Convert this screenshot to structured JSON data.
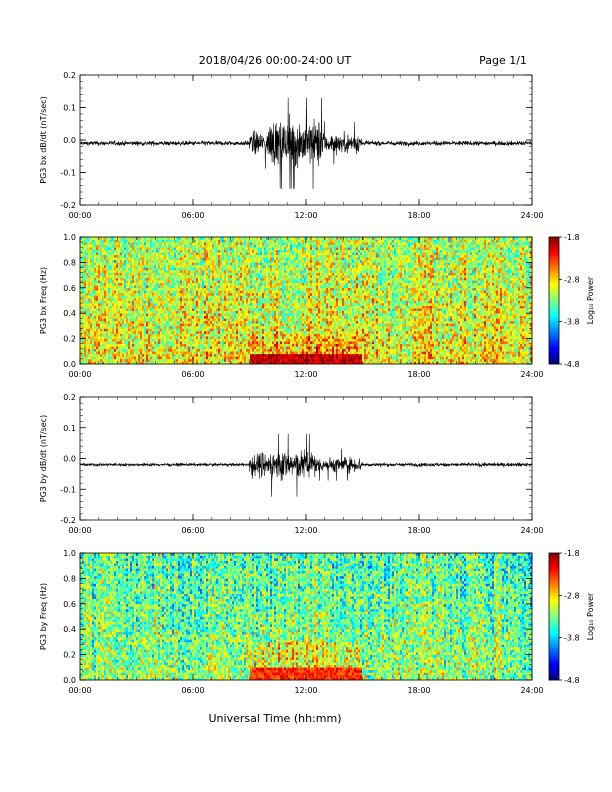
{
  "header": {
    "title": "2018/04/26  00:00-24:00 UT",
    "page": "Page 1/1"
  },
  "xlabel": "Universal Time (hh:mm)",
  "x_ticks": [
    "00:00",
    "06:00",
    "12:00",
    "18:00",
    "24:00"
  ],
  "colorbar": {
    "label": "Log₁₀ Power",
    "ticks": [
      "-1.8",
      "-2.8",
      "-3.8",
      "-4.8"
    ],
    "range": [
      -4.8,
      -1.8
    ]
  },
  "chart_data": [
    {
      "type": "line",
      "ylabel": "PG3 bx dB/dt (nT/sec)",
      "xlim": [
        0,
        24
      ],
      "ylim": [
        -0.2,
        0.2
      ],
      "y_ticks": [
        "0.2",
        "0.1",
        "0.0",
        "-0.1",
        "-0.2"
      ],
      "baseline": -0.01,
      "activity": [
        {
          "t": [
            0,
            9
          ],
          "amplitude": 0.012
        },
        {
          "t": [
            9,
            10
          ],
          "amplitude": 0.06
        },
        {
          "t": [
            10,
            13
          ],
          "amplitude": 0.12
        },
        {
          "t": [
            13,
            15
          ],
          "amplitude": 0.05
        },
        {
          "t": [
            15,
            24
          ],
          "amplitude": 0.012
        }
      ],
      "peak_max": 0.13,
      "peak_min": -0.15
    },
    {
      "type": "heatmap",
      "ylabel": "PG3 bx Freq (Hz)",
      "xlim": [
        0,
        24
      ],
      "ylim": [
        0,
        1.0
      ],
      "y_ticks": [
        "1.0",
        "0.8",
        "0.6",
        "0.4",
        "0.2",
        "0.0"
      ],
      "background_log_power": -2.9,
      "enhancement": {
        "t": [
          9,
          15
        ],
        "freq": [
          0,
          0.08
        ],
        "log_power": -2.0
      }
    },
    {
      "type": "line",
      "ylabel": "PG3 by dB/dt (nT/sec)",
      "xlim": [
        0,
        24
      ],
      "ylim": [
        -0.2,
        0.2
      ],
      "y_ticks": [
        "0.2",
        "0.1",
        "0.0",
        "-0.1",
        "-0.2"
      ],
      "baseline": -0.02,
      "activity": [
        {
          "t": [
            0,
            9
          ],
          "amplitude": 0.008
        },
        {
          "t": [
            9,
            10
          ],
          "amplitude": 0.07
        },
        {
          "t": [
            10,
            12.5
          ],
          "amplitude": 0.08
        },
        {
          "t": [
            12.5,
            15
          ],
          "amplitude": 0.04
        },
        {
          "t": [
            15,
            24
          ],
          "amplitude": 0.01
        }
      ],
      "peak_max": 0.08,
      "peak_min": -0.17
    },
    {
      "type": "heatmap",
      "ylabel": "PG3 by Freq (Hz)",
      "xlim": [
        0,
        24
      ],
      "ylim": [
        0,
        1.0
      ],
      "y_ticks": [
        "1.0",
        "0.8",
        "0.6",
        "0.4",
        "0.2",
        "0.0"
      ],
      "background_log_power": -3.2,
      "enhancement": {
        "t": [
          9,
          15
        ],
        "freq": [
          0,
          0.1
        ],
        "log_power": -2.3
      }
    }
  ]
}
